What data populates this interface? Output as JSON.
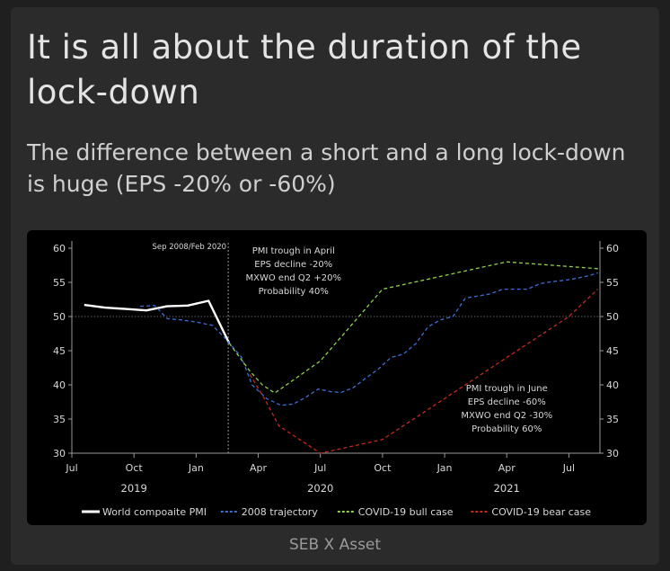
{
  "header": {
    "title": "It is all about the duration of the lock-down",
    "subtitle": "The difference between a short and a long lock-down is huge (EPS -20% or -60%)"
  },
  "footer": {
    "source": "SEB X Asset"
  },
  "chart_data": {
    "type": "line",
    "title": "",
    "xlabel": "",
    "ylabel": "",
    "ylim": [
      30,
      60
    ],
    "yticks": [
      30,
      35,
      40,
      45,
      50,
      55,
      60
    ],
    "ytick_labels": [
      "30",
      "35",
      "40",
      "45",
      "50",
      "55",
      "60"
    ],
    "x_range_months": [
      0,
      25.5
    ],
    "x_month_index_note": "0 = Jul 2019, 1 = Aug 2019, ... 12 = Jul 2020",
    "xticks": [
      {
        "m": 0,
        "label": "Jul"
      },
      {
        "m": 3,
        "label": "Oct"
      },
      {
        "m": 6,
        "label": "Jan"
      },
      {
        "m": 9,
        "label": "Apr"
      },
      {
        "m": 12,
        "label": "Jul"
      },
      {
        "m": 15,
        "label": "Oct"
      },
      {
        "m": 18,
        "label": "Jan"
      },
      {
        "m": 21,
        "label": "Apr"
      },
      {
        "m": 24,
        "label": "Jul"
      }
    ],
    "year_labels": [
      {
        "m": 3,
        "label": "2019"
      },
      {
        "m": 12,
        "label": "2020"
      },
      {
        "m": 21,
        "label": "2021"
      }
    ],
    "reference_line_y": 50,
    "vline": {
      "m": 7.55,
      "label": "Sep 2008/Feb 2020"
    },
    "series": [
      {
        "name": "World compoaite PMI",
        "color": "#ffffff",
        "style": "solid",
        "points": [
          [
            0.6,
            51.7
          ],
          [
            1.6,
            51.3
          ],
          [
            2.6,
            51.1
          ],
          [
            3.6,
            50.9
          ],
          [
            4.6,
            51.5
          ],
          [
            5.6,
            51.6
          ],
          [
            6.6,
            52.3
          ],
          [
            7.6,
            46.1
          ]
        ]
      },
      {
        "name": "2008 trajectory",
        "color": "#3c6fd6",
        "style": "dashed",
        "points": [
          [
            3.3,
            51.5
          ],
          [
            4.0,
            51.6
          ],
          [
            4.6,
            49.7
          ],
          [
            5.3,
            49.5
          ],
          [
            6.0,
            49.2
          ],
          [
            6.8,
            48.7
          ],
          [
            7.5,
            46.5
          ],
          [
            8.2,
            44.0
          ],
          [
            8.7,
            40.0
          ],
          [
            9.4,
            38.0
          ],
          [
            10.1,
            37.0
          ],
          [
            10.7,
            37.2
          ],
          [
            11.3,
            38.2
          ],
          [
            11.9,
            39.4
          ],
          [
            12.5,
            39.0
          ],
          [
            13.0,
            38.9
          ],
          [
            13.6,
            39.6
          ],
          [
            14.2,
            41.0
          ],
          [
            14.8,
            42.3
          ],
          [
            15.4,
            44.0
          ],
          [
            16.0,
            44.5
          ],
          [
            16.6,
            46.0
          ],
          [
            17.2,
            48.5
          ],
          [
            17.8,
            49.5
          ],
          [
            18.4,
            50.0
          ],
          [
            19.0,
            52.7
          ],
          [
            19.6,
            53.0
          ],
          [
            20.2,
            53.3
          ],
          [
            20.8,
            54.0
          ],
          [
            21.4,
            54.0
          ],
          [
            22.0,
            54.0
          ],
          [
            22.6,
            54.8
          ],
          [
            23.2,
            55.1
          ],
          [
            23.8,
            55.3
          ],
          [
            24.4,
            55.6
          ],
          [
            25.0,
            56.0
          ],
          [
            25.4,
            56.4
          ]
        ]
      },
      {
        "name": "COVID-19 bull case",
        "color": "#8fd24a",
        "style": "dashed",
        "points": [
          [
            7.6,
            46.1
          ],
          [
            8.6,
            42.0
          ],
          [
            9.2,
            40.0
          ],
          [
            9.8,
            38.8
          ],
          [
            12.0,
            43.5
          ],
          [
            15.0,
            54.0
          ],
          [
            18.0,
            56.0
          ],
          [
            21.0,
            58.0
          ],
          [
            25.4,
            57.0
          ]
        ]
      },
      {
        "name": "COVID-19 bear case",
        "color": "#c42a1e",
        "style": "dashed",
        "points": [
          [
            8.6,
            41.5
          ],
          [
            9.3,
            38.0
          ],
          [
            10.0,
            34.0
          ],
          [
            11.0,
            32.0
          ],
          [
            12.0,
            30.0
          ],
          [
            15.0,
            32.0
          ],
          [
            18.0,
            38.0
          ],
          [
            21.0,
            44.0
          ],
          [
            24.0,
            50.0
          ],
          [
            25.4,
            54.0
          ]
        ]
      }
    ],
    "annotations": [
      {
        "lines": [
          "PMI trough in April",
          "EPS decline -20%",
          "MXWO end Q2 +20%",
          "Probability 40%"
        ],
        "m": 10.7,
        "y_top": 59.2
      },
      {
        "lines": [
          "PMI trough in June",
          "EPS decline -60%",
          "MXWO end Q2 -30%",
          "Probability 60%"
        ],
        "m": 21.0,
        "y_top": 39.1
      }
    ],
    "legend": {
      "placement": "bottom",
      "entries": [
        {
          "label": "World compoaite PMI",
          "color": "#ffffff",
          "style": "solid"
        },
        {
          "label": "2008 trajectory",
          "color": "#3c6fd6",
          "style": "dashed"
        },
        {
          "label": "COVID-19 bull case",
          "color": "#8fd24a",
          "style": "dashed"
        },
        {
          "label": "COVID-19 bear case",
          "color": "#c42a1e",
          "style": "dashed"
        }
      ]
    }
  }
}
